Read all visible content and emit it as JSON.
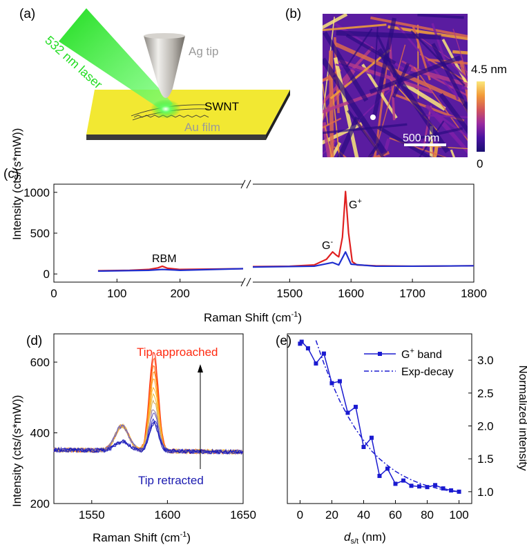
{
  "panel_a": {
    "label": "(a)",
    "laser_label": "532 nm laser",
    "tip_label": "Ag tip",
    "tube_label": "SWNT",
    "film_label": "Au film",
    "colors": {
      "laser": "#22dd22",
      "film": "#f2e832",
      "tip": "#bdbab4"
    }
  },
  "panel_b": {
    "label": "(b)",
    "colorbar_max": "4.5 nm",
    "colorbar_min": "0",
    "scalebar": "500 nm",
    "colormap": [
      "#1a1072",
      "#3c0f9d",
      "#7b1fa8",
      "#b13a8a",
      "#dc6a4c",
      "#f4a236",
      "#fbe77a"
    ]
  },
  "chart_data": [
    {
      "panel": "(c)",
      "type": "line",
      "xlabel": "Raman Shift (cm-1)",
      "ylabel": "Intensity (cts/(s*mW))",
      "x_segments": [
        [
          0,
          300
        ],
        [
          1440,
          1800
        ]
      ],
      "xticks": [
        "0",
        "100",
        "200",
        "1500",
        "1600",
        "1700",
        "1800"
      ],
      "yticks": [
        "0",
        "500",
        "1000"
      ],
      "ylim": [
        -100,
        1100
      ],
      "annotations": [
        "RBM",
        "G-",
        "G+"
      ],
      "series": [
        {
          "color": "#e02020",
          "x": [
            70,
            120,
            150,
            165,
            172,
            180,
            200,
            250,
            300,
            1440,
            1500,
            1540,
            1560,
            1570,
            1576,
            1580,
            1586,
            1591,
            1596,
            1602,
            1610,
            1640,
            1700,
            1800
          ],
          "y": [
            40,
            45,
            55,
            75,
            95,
            70,
            55,
            60,
            65,
            90,
            95,
            110,
            180,
            270,
            230,
            210,
            450,
            1010,
            500,
            150,
            110,
            100,
            95,
            100
          ]
        },
        {
          "color": "#1f2fcf",
          "x": [
            70,
            150,
            172,
            200,
            300,
            1440,
            1540,
            1570,
            1580,
            1591,
            1600,
            1640,
            1700,
            1800
          ],
          "y": [
            35,
            45,
            55,
            45,
            65,
            85,
            95,
            140,
            110,
            270,
            120,
            95,
            95,
            100
          ]
        }
      ]
    },
    {
      "panel": "(d)",
      "type": "line",
      "xlabel": "Raman Shift (cm-1)",
      "ylabel": "Intensity (cts/(s*mW))",
      "xlim": [
        1525,
        1650
      ],
      "ylim": [
        200,
        680
      ],
      "xticks": [
        1550,
        1600,
        1650
      ],
      "yticks": [
        200,
        400,
        600
      ],
      "annotations": [
        "Tip approached",
        "Tip retracted"
      ],
      "series_peaks": [
        630,
        610,
        590,
        570,
        550,
        530,
        510,
        490,
        470,
        455,
        440,
        432,
        428
      ],
      "series_colors": [
        "#ff2a10",
        "#ff4a10",
        "#ff6a12",
        "#ff8818",
        "#ffa020",
        "#ffb830",
        "#f0c040",
        "#d8b060",
        "#9a80a0",
        "#6a60c0",
        "#4040d0",
        "#2828c0",
        "#1a1ab0"
      ]
    },
    {
      "panel": "(e)",
      "type": "line",
      "xlabel": "ds/t (nm)",
      "ylabel": "Normalized intensity",
      "xlim": [
        -8,
        108
      ],
      "ylim": [
        0.82,
        3.4
      ],
      "xticks": [
        0,
        20,
        40,
        60,
        80,
        100
      ],
      "yticks": [
        "1.0",
        "1.5",
        "2.0",
        "2.5",
        "3.0"
      ],
      "legend": [
        "G+ band",
        "Exp-decay"
      ],
      "series": [
        {
          "name": "G+ band",
          "color": "#1a1ad0",
          "x": [
            0,
            1,
            5,
            10,
            15,
            20,
            25,
            30,
            35,
            40,
            45,
            50,
            55,
            60,
            65,
            70,
            75,
            80,
            85,
            90,
            95,
            100
          ],
          "y": [
            3.25,
            3.28,
            3.18,
            2.95,
            3.1,
            2.65,
            2.68,
            2.2,
            2.29,
            1.68,
            1.82,
            1.24,
            1.35,
            1.12,
            1.17,
            1.09,
            1.08,
            1.07,
            1.1,
            1.05,
            1.02,
            1.0
          ]
        },
        {
          "name": "Exp-decay",
          "color": "#1a1ad0",
          "x": [
            10,
            15,
            20,
            25,
            30,
            35,
            40,
            45,
            50,
            55,
            60,
            65,
            70,
            75,
            80,
            85,
            90,
            95,
            100
          ],
          "y": [
            3.3,
            2.95,
            2.65,
            2.38,
            2.15,
            1.95,
            1.78,
            1.62,
            1.5,
            1.4,
            1.31,
            1.24,
            1.18,
            1.13,
            1.09,
            1.06,
            1.03,
            1.01,
            1.0
          ]
        }
      ]
    }
  ]
}
